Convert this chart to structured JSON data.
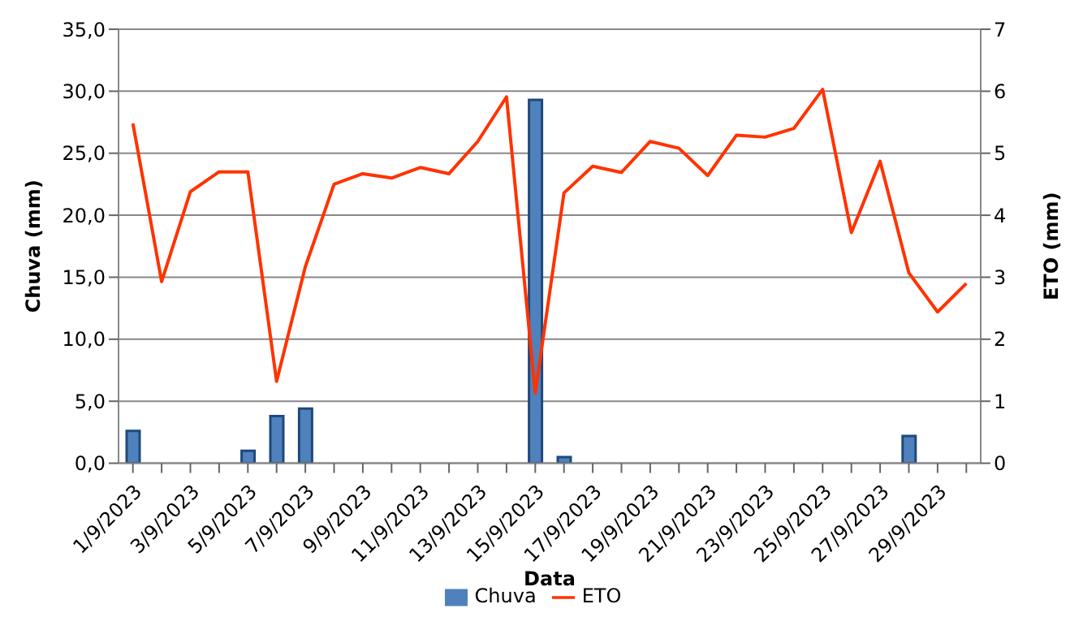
{
  "chart_data": {
    "type": "bar",
    "xlabel": "Data",
    "ylabel": "Chuva (mm)",
    "y2label": "ETO (mm)",
    "categories": [
      "1/9/2023",
      null,
      "3/9/2023",
      null,
      "5/9/2023",
      null,
      "7/9/2023",
      null,
      "9/9/2023",
      null,
      "11/9/2023",
      null,
      "13/9/2023",
      null,
      "15/9/2023",
      null,
      "17/9/2023",
      null,
      "19/9/2023",
      null,
      "21/9/2023",
      null,
      "23/9/2023",
      null,
      "25/9/2023",
      null,
      "27/9/2023",
      null,
      "29/9/2023",
      null
    ],
    "series": [
      {
        "name": "Chuva",
        "color": "#4f81bd",
        "values": [
          2.6,
          0,
          0,
          0,
          1.0,
          3.8,
          4.4,
          0,
          0,
          0,
          0,
          0,
          0,
          0,
          29.3,
          0.5,
          0,
          0,
          0,
          0,
          0,
          0,
          0,
          0,
          0,
          0,
          0,
          2.2,
          0,
          0
        ]
      },
      {
        "name": "ETO",
        "type": "line",
        "axis": "y2",
        "color": "#ff3300",
        "values": [
          5.48,
          2.93,
          4.38,
          4.7,
          4.7,
          1.32,
          3.17,
          4.5,
          4.67,
          4.6,
          4.77,
          4.67,
          5.19,
          5.91,
          1.13,
          4.36,
          4.79,
          4.69,
          5.19,
          5.08,
          4.64,
          5.29,
          5.26,
          5.4,
          6.03,
          3.72,
          4.87,
          3.07,
          2.44,
          2.9
        ]
      }
    ],
    "ylim": [
      0,
      35
    ],
    "yticks": [
      {
        "value": 0,
        "label": "0,0"
      },
      {
        "value": 5,
        "label": "5,0"
      },
      {
        "value": 10,
        "label": "10,0"
      },
      {
        "value": 15,
        "label": "15,0"
      },
      {
        "value": 20,
        "label": "20,0"
      },
      {
        "value": 25,
        "label": "25,0"
      },
      {
        "value": 30,
        "label": "30,0"
      },
      {
        "value": 35,
        "label": "35,0"
      }
    ],
    "y2lim": [
      0,
      7
    ],
    "y2ticks": [
      0,
      1,
      2,
      3,
      4,
      5,
      6,
      7
    ],
    "grid": "y",
    "legend": "bottom",
    "marker": "none"
  }
}
